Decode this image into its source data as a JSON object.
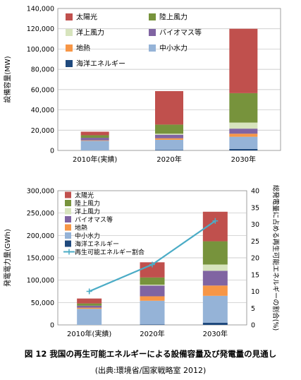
{
  "colors": {
    "solar": "#c0504d",
    "onshore_wind": "#77933c",
    "offshore_wind": "#d7e4bd",
    "biomass": "#8064a2",
    "geothermal": "#f79646",
    "small_hydro": "#95b3d7",
    "ocean": "#1f497d",
    "ratio_line": "#4bacc6"
  },
  "chart_data": [
    {
      "type": "bar",
      "stacked": true,
      "title": "",
      "xlabel": "",
      "ylabel": "設備容量(MW)",
      "ylim": [
        0,
        140000
      ],
      "yticks": [
        "0",
        "20,000",
        "40,000",
        "60,000",
        "80,000",
        "100,000",
        "120,000",
        "140,000"
      ],
      "grid": true,
      "legend": "top-left",
      "categories": [
        "2010年(実績)",
        "2020年",
        "2030年"
      ],
      "series": [
        {
          "name": "海洋エネルギー",
          "color_key": "ocean",
          "values": [
            0,
            500,
            1500
          ]
        },
        {
          "name": "中小水力",
          "color_key": "small_hydro",
          "values": [
            9500,
            10000,
            12000
          ]
        },
        {
          "name": "地熱",
          "color_key": "geothermal",
          "values": [
            500,
            1500,
            3000
          ]
        },
        {
          "name": "バイオマス等",
          "color_key": "biomass",
          "values": [
            2500,
            3500,
            5000
          ]
        },
        {
          "name": "洋上風力",
          "color_key": "offshore_wind",
          "values": [
            0,
            1000,
            6000
          ]
        },
        {
          "name": "陸上風力",
          "color_key": "onshore_wind",
          "values": [
            2500,
            9000,
            29000
          ]
        },
        {
          "name": "太陽光",
          "color_key": "solar",
          "values": [
            3500,
            33000,
            63500
          ]
        }
      ],
      "legend_order": [
        "太陽光",
        "陸上風力",
        "洋上風力",
        "バイオマス等",
        "地熱",
        "中小水力",
        "海洋エネルギー"
      ]
    },
    {
      "type": "bar",
      "stacked": true,
      "title": "",
      "xlabel": "",
      "ylabel": "発電電力量(GWh)",
      "ylabel_right": "総発電量に占める再生可能エネルギーの割合(%)",
      "ylim": [
        0,
        300000
      ],
      "ylim_right": [
        0,
        40
      ],
      "yticks": [
        "0",
        "50,000",
        "100,000",
        "150,000",
        "200,000",
        "250,000",
        "300,000"
      ],
      "yticks_right": [
        "0",
        "5",
        "10",
        "15",
        "20",
        "25",
        "30",
        "35",
        "40"
      ],
      "grid": true,
      "legend": "top-left",
      "categories": [
        "2010年(実績)",
        "2020年",
        "2030年"
      ],
      "series": [
        {
          "name": "海洋エネルギー",
          "color_key": "ocean",
          "values": [
            0,
            1000,
            5000
          ]
        },
        {
          "name": "中小水力",
          "color_key": "small_hydro",
          "values": [
            36000,
            53000,
            60000
          ]
        },
        {
          "name": "地熱",
          "color_key": "geothermal",
          "values": [
            2500,
            10000,
            23000
          ]
        },
        {
          "name": "バイオマス等",
          "color_key": "biomass",
          "values": [
            4500,
            24000,
            33000
          ]
        },
        {
          "name": "洋上風力",
          "color_key": "offshore_wind",
          "values": [
            0,
            2000,
            14000
          ]
        },
        {
          "name": "陸上風力",
          "color_key": "onshore_wind",
          "values": [
            5000,
            16000,
            52000
          ]
        },
        {
          "name": "太陽光",
          "color_key": "solar",
          "values": [
            11000,
            34000,
            66000
          ]
        }
      ],
      "line_series": {
        "name": "再生可能エネルギー割合",
        "color_key": "ratio_line",
        "values": [
          10,
          18,
          31
        ]
      },
      "legend_order": [
        "太陽光",
        "陸上風力",
        "洋上風力",
        "バイオマス等",
        "地熱",
        "中小水力",
        "海洋エネルギー",
        "再生可能エネルギー割合"
      ]
    }
  ],
  "figure": {
    "title": "図 12  我国の再生可能エネルギーによる設備容量及び発電量の見通し",
    "source": "(出典:環境省/国家戦略室 2012)"
  }
}
